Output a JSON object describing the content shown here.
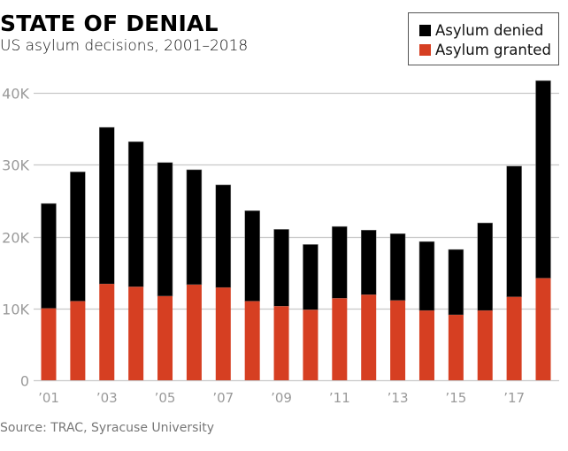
{
  "chart_data": {
    "type": "bar",
    "stacked": true,
    "title": "STATE OF DENIAL",
    "subtitle": "US asylum decisions, 2001–2018",
    "xlabel": "",
    "ylabel": "",
    "ylim": [
      0,
      42000
    ],
    "grid": true,
    "legend_position": "top-right",
    "categories": [
      "2001",
      "2002",
      "2003",
      "2004",
      "2005",
      "2006",
      "2007",
      "2008",
      "2009",
      "2010",
      "2011",
      "2012",
      "2013",
      "2014",
      "2015",
      "2016",
      "2017",
      "2018"
    ],
    "x_tick_labels": [
      "’01",
      "",
      "’03",
      "",
      "’05",
      "",
      "’07",
      "",
      "’09",
      "",
      "’11",
      "",
      "’13",
      "",
      "’15",
      "",
      "’17",
      ""
    ],
    "y_ticks": [
      0,
      10000,
      20000,
      30000,
      40000
    ],
    "y_tick_labels": [
      "0",
      "10K",
      "20K",
      "30K",
      "40K"
    ],
    "series": [
      {
        "name": "Asylum granted",
        "color": "#d63f22",
        "values": [
          10000,
          11000,
          13400,
          13000,
          11700,
          13300,
          12900,
          11000,
          10300,
          9800,
          11400,
          11900,
          11100,
          9700,
          9100,
          9700,
          11600,
          14200
        ]
      },
      {
        "name": "Asylum denied",
        "color": "#000000",
        "values": [
          14600,
          18000,
          21800,
          20200,
          18600,
          16000,
          14300,
          12600,
          10700,
          9100,
          10000,
          9000,
          9300,
          9600,
          9100,
          12200,
          18200,
          27500
        ]
      }
    ]
  },
  "legend": {
    "items": [
      {
        "label": "Asylum denied",
        "color": "#000000"
      },
      {
        "label": "Asylum granted",
        "color": "#d63f22"
      }
    ]
  },
  "source": "Source: TRAC, Syracuse University",
  "colors": {
    "grid": "#c8c8c8",
    "tick_text": "#9a9a9a"
  }
}
